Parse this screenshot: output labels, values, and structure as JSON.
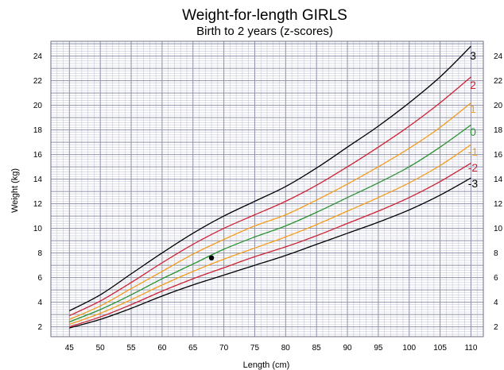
{
  "chart_data": {
    "type": "line",
    "title": "Weight-for-length GIRLS",
    "subtitle": "Birth to 2 years (z-scores)",
    "xlabel": "Length (cm)",
    "ylabel": "Weight (kg)",
    "xlim": [
      42,
      112
    ],
    "ylim": [
      1.2,
      25.2
    ],
    "x_ticks": [
      45,
      50,
      55,
      60,
      65,
      70,
      75,
      80,
      85,
      90,
      95,
      100,
      105,
      110
    ],
    "y_ticks": [
      2,
      4,
      6,
      8,
      10,
      12,
      14,
      16,
      18,
      20,
      22,
      24
    ],
    "grid": true,
    "x": [
      45,
      50,
      55,
      60,
      65,
      70,
      75,
      80,
      85,
      90,
      95,
      100,
      105,
      110
    ],
    "series": [
      {
        "name": "3",
        "color": "#000000",
        "values": [
          3.3,
          4.6,
          6.3,
          8.0,
          9.6,
          11.0,
          12.2,
          13.4,
          14.9,
          16.6,
          18.3,
          20.2,
          22.3,
          24.8
        ]
      },
      {
        "name": "2",
        "color": "#cc2233",
        "values": [
          2.9,
          4.1,
          5.6,
          7.2,
          8.7,
          10.0,
          11.1,
          12.2,
          13.5,
          15.0,
          16.6,
          18.3,
          20.2,
          22.3
        ]
      },
      {
        "name": "1",
        "color": "#f39c1e",
        "values": [
          2.6,
          3.7,
          5.1,
          6.5,
          7.9,
          9.1,
          10.2,
          11.1,
          12.3,
          13.6,
          15.0,
          16.5,
          18.2,
          20.2
        ]
      },
      {
        "name": "0",
        "color": "#2a9130",
        "values": [
          2.4,
          3.4,
          4.6,
          5.9,
          7.1,
          8.3,
          9.3,
          10.2,
          11.3,
          12.5,
          13.7,
          15.0,
          16.6,
          18.4
        ]
      },
      {
        "name": "-1",
        "color": "#f39c1e",
        "values": [
          2.2,
          3.1,
          4.2,
          5.4,
          6.5,
          7.5,
          8.4,
          9.3,
          10.3,
          11.4,
          12.5,
          13.7,
          15.1,
          16.8
        ]
      },
      {
        "name": "-2",
        "color": "#cc2233",
        "values": [
          2.0,
          2.8,
          3.8,
          4.9,
          5.9,
          6.8,
          7.7,
          8.5,
          9.4,
          10.4,
          11.4,
          12.5,
          13.8,
          15.3
        ]
      },
      {
        "name": "-3",
        "color": "#000000",
        "values": [
          1.9,
          2.6,
          3.5,
          4.5,
          5.4,
          6.2,
          7.0,
          7.8,
          8.7,
          9.6,
          10.5,
          11.5,
          12.7,
          14.1
        ]
      }
    ],
    "points": [
      {
        "x": 68,
        "y": 7.6
      }
    ],
    "grid_colors": {
      "major": "#8e90a8",
      "minor": "#c4c6d8"
    }
  }
}
